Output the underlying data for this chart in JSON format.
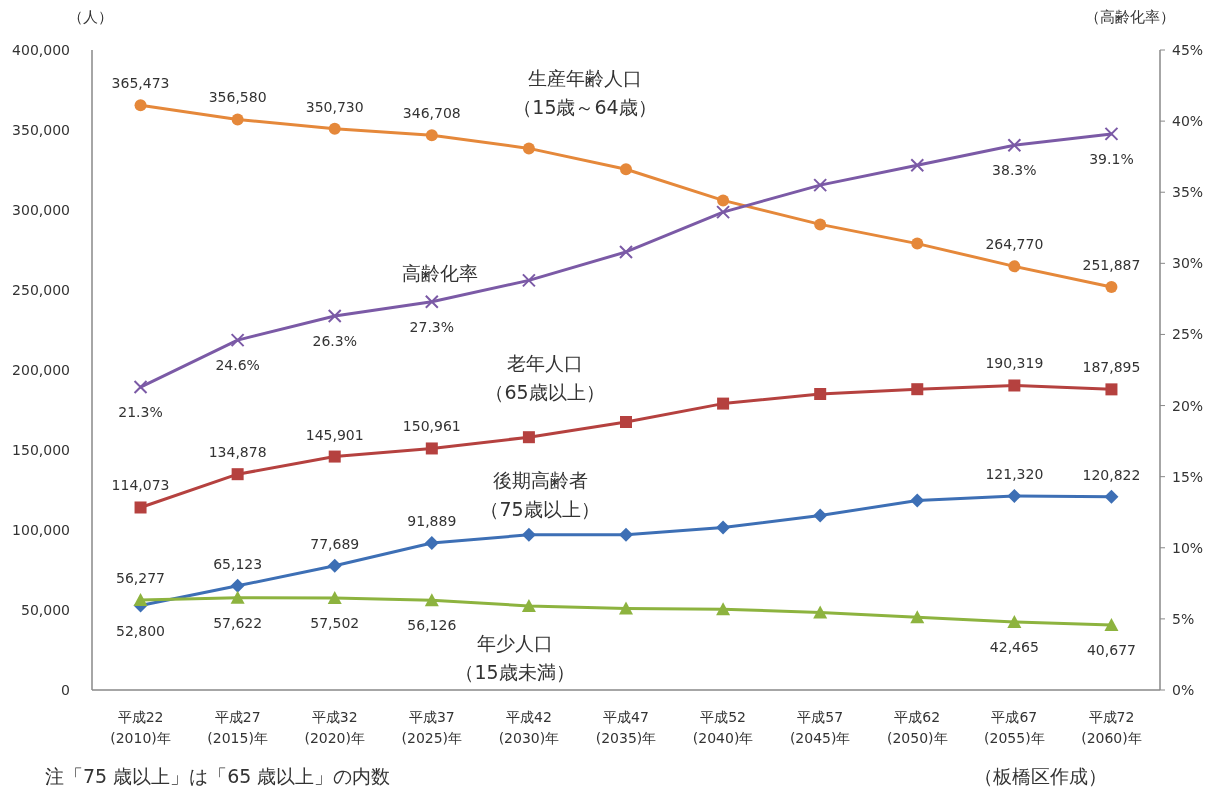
{
  "chart_data": {
    "type": "line",
    "ylabel": "（人）",
    "y2label": "（高齢化率）",
    "categories": [
      "平成22\n(2010)年",
      "平成27\n(2015)年",
      "平成32\n(2020)年",
      "平成37\n(2025)年",
      "平成42\n(2030)年",
      "平成47\n(2035)年",
      "平成52\n(2040)年",
      "平成57\n(2045)年",
      "平成62\n(2050)年",
      "平成67\n(2055)年",
      "平成72\n(2060)年"
    ],
    "ylim": [
      0,
      400000
    ],
    "yticks": [
      0,
      {
        "value": 50000,
        "label": "50,000"
      },
      {
        "value": 100000,
        "label": "100,000"
      },
      {
        "value": 150000,
        "label": "150,000"
      },
      {
        "value": 200000,
        "label": "200,000"
      },
      {
        "value": 250000,
        "label": "250,000"
      },
      {
        "value": 300000,
        "label": "300,000"
      },
      {
        "value": 350000,
        "label": "350,000"
      },
      {
        "value": 400000,
        "label": "400,000"
      }
    ],
    "y2lim": [
      0,
      45
    ],
    "y2ticks": [
      {
        "value": 0,
        "label": "0%"
      },
      {
        "value": 5,
        "label": "5%"
      },
      {
        "value": 10,
        "label": "10%"
      },
      {
        "value": 15,
        "label": "15%"
      },
      {
        "value": 20,
        "label": "20%"
      },
      {
        "value": 25,
        "label": "25%"
      },
      {
        "value": 30,
        "label": "30%"
      },
      {
        "value": 35,
        "label": "35%"
      },
      {
        "value": 40,
        "label": "40%"
      },
      {
        "value": 45,
        "label": "45%"
      }
    ],
    "grid": false,
    "series": [
      {
        "name": "生産年齢人口（15歳～64歳）",
        "color": "#e5883a",
        "marker": "circle",
        "values": [
          365473,
          356580,
          350730,
          346708,
          338500,
          325500,
          306000,
          291000,
          279000,
          264770,
          251887
        ],
        "value_labels": [
          "365,473",
          "356,580",
          "350,730",
          "346,708",
          null,
          null,
          null,
          null,
          null,
          "264,770",
          "251,887"
        ]
      },
      {
        "name": "高齢化率",
        "color": "#7b5aa6",
        "marker": "cross",
        "axis": "y2",
        "values": [
          21.3,
          24.6,
          26.3,
          27.3,
          28.8,
          30.8,
          33.6,
          35.5,
          36.9,
          38.3,
          39.1
        ],
        "value_labels": [
          "21.3%",
          "24.6%",
          "26.3%",
          "27.3%",
          null,
          null,
          null,
          null,
          null,
          "38.3%",
          "39.1%"
        ]
      },
      {
        "name": "老年人口（65歳以上）",
        "color": "#b5413f",
        "marker": "square",
        "values": [
          114073,
          134878,
          145901,
          150961,
          158000,
          167500,
          179000,
          185000,
          188000,
          190319,
          187895
        ],
        "value_labels": [
          "114,073",
          "134,878",
          "145,901",
          "150,961",
          null,
          null,
          null,
          null,
          null,
          "190,319",
          "187,895"
        ]
      },
      {
        "name": "後期高齢者（75歳以上）",
        "color": "#3d6fb5",
        "marker": "diamond",
        "values": [
          52800,
          65123,
          77689,
          91889,
          97000,
          97000,
          101500,
          109000,
          118500,
          121320,
          120822
        ],
        "value_labels": [
          "52,800",
          "65,123",
          "77,689",
          "91,889",
          null,
          null,
          null,
          null,
          null,
          "121,320",
          "120,822"
        ]
      },
      {
        "name": "年少人口（15歳未満）",
        "color": "#8db33f",
        "marker": "triangle",
        "values": [
          56277,
          57622,
          57502,
          56126,
          52500,
          51000,
          50500,
          48500,
          45500,
          42465,
          40677
        ],
        "value_labels": [
          "56,277",
          "57,622",
          "57,502",
          "56,126",
          null,
          null,
          null,
          null,
          null,
          "42,465",
          "40,677"
        ]
      }
    ],
    "annotations": [
      "注「75 歳以上」は「65 歳以上」の内数",
      "（板橋区作成）"
    ]
  }
}
